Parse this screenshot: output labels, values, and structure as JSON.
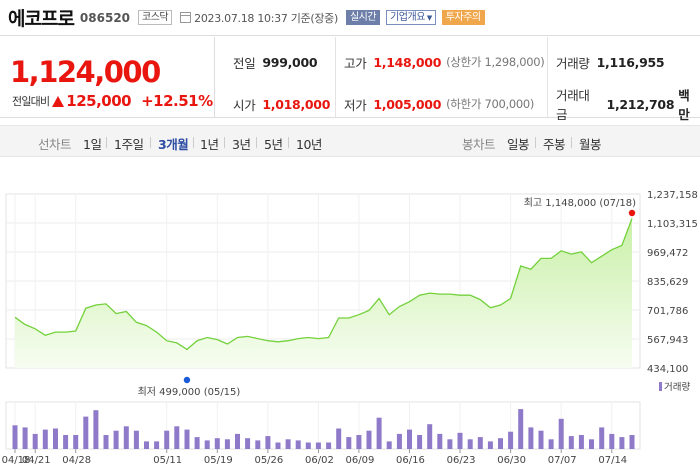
{
  "header": {
    "name": "에코프로",
    "code": "086520",
    "market": "코스닥",
    "datetime": "2023.07.18 10:37 기준(장중)",
    "live_label": "실시간",
    "company_info_label": "기업개요",
    "warning_label": "투자주의"
  },
  "price": {
    "current": "1,124,000",
    "change_label": "전일대비",
    "change_amount": "125,000",
    "change_pct": "+12.51%"
  },
  "stats": {
    "prev_close_label": "전일",
    "prev_close": "999,000",
    "high_label": "고가",
    "high": "1,148,000",
    "upper_limit": "(상한가 1,298,000)",
    "volume_label": "거래량",
    "volume": "1,116,955",
    "open_label": "시가",
    "open": "1,018,000",
    "low_label": "저가",
    "low": "1,005,000",
    "lower_limit": "(하한가 700,000)",
    "amount_label": "거래대금",
    "amount": "1,212,708",
    "amount_unit": "백만"
  },
  "tabs": {
    "line_group": "선차트",
    "line_items": [
      "1일",
      "1주일",
      "3개월",
      "1년",
      "3년",
      "5년",
      "10년"
    ],
    "selected": "3개월",
    "candle_group": "봉차트",
    "candle_items": [
      "일봉",
      "주봉",
      "월봉"
    ]
  },
  "colors": {
    "up": "#e8160f",
    "line": "#73d13b",
    "fill_top": "#c9f0a8",
    "volume_bar": "#8f7ac9",
    "low_marker": "#1a5bd6"
  },
  "chart_data": {
    "type": "area",
    "y_ticks": [
      "1,237,158",
      "1,103,315",
      "969,472",
      "835,629",
      "701,786",
      "567,943",
      "434,100"
    ],
    "ylim": [
      434100,
      1237158
    ],
    "x_ticks": [
      "04/18",
      "04/21",
      "04/28",
      "05/11",
      "05/19",
      "05/26",
      "06/02",
      "06/09",
      "06/16",
      "06/23",
      "06/30",
      "07/07",
      "07/14"
    ],
    "high_annotation": "최고 1,148,000 (07/18)",
    "low_annotation": "최저 499,000 (05/15)",
    "volume_legend": "거래량",
    "price_values": [
      668000,
      635000,
      615000,
      585000,
      600000,
      600000,
      605000,
      710000,
      725000,
      730000,
      685000,
      695000,
      645000,
      630000,
      600000,
      560000,
      550000,
      520000,
      560000,
      575000,
      565000,
      545000,
      575000,
      580000,
      570000,
      560000,
      555000,
      560000,
      570000,
      575000,
      570000,
      575000,
      665000,
      665000,
      680000,
      700000,
      755000,
      680000,
      718000,
      740000,
      770000,
      780000,
      775000,
      775000,
      770000,
      770000,
      750000,
      712000,
      725000,
      755000,
      905000,
      890000,
      940000,
      940000,
      975000,
      960000,
      970000,
      920000,
      950000,
      980000,
      1000000,
      1124000
    ],
    "volume_values": [
      22,
      20,
      14,
      18,
      19,
      13,
      13,
      30,
      36,
      13,
      17,
      21,
      17,
      7,
      7,
      17,
      21,
      18,
      11,
      8,
      10,
      9,
      14,
      10,
      8,
      12,
      6,
      9,
      8,
      6,
      6,
      6,
      19,
      11,
      13,
      17,
      29,
      7,
      14,
      18,
      13,
      23,
      14,
      9,
      15,
      9,
      11,
      7,
      10,
      16,
      37,
      20,
      17,
      9,
      28,
      12,
      13,
      9,
      20,
      14,
      11,
      13
    ]
  }
}
